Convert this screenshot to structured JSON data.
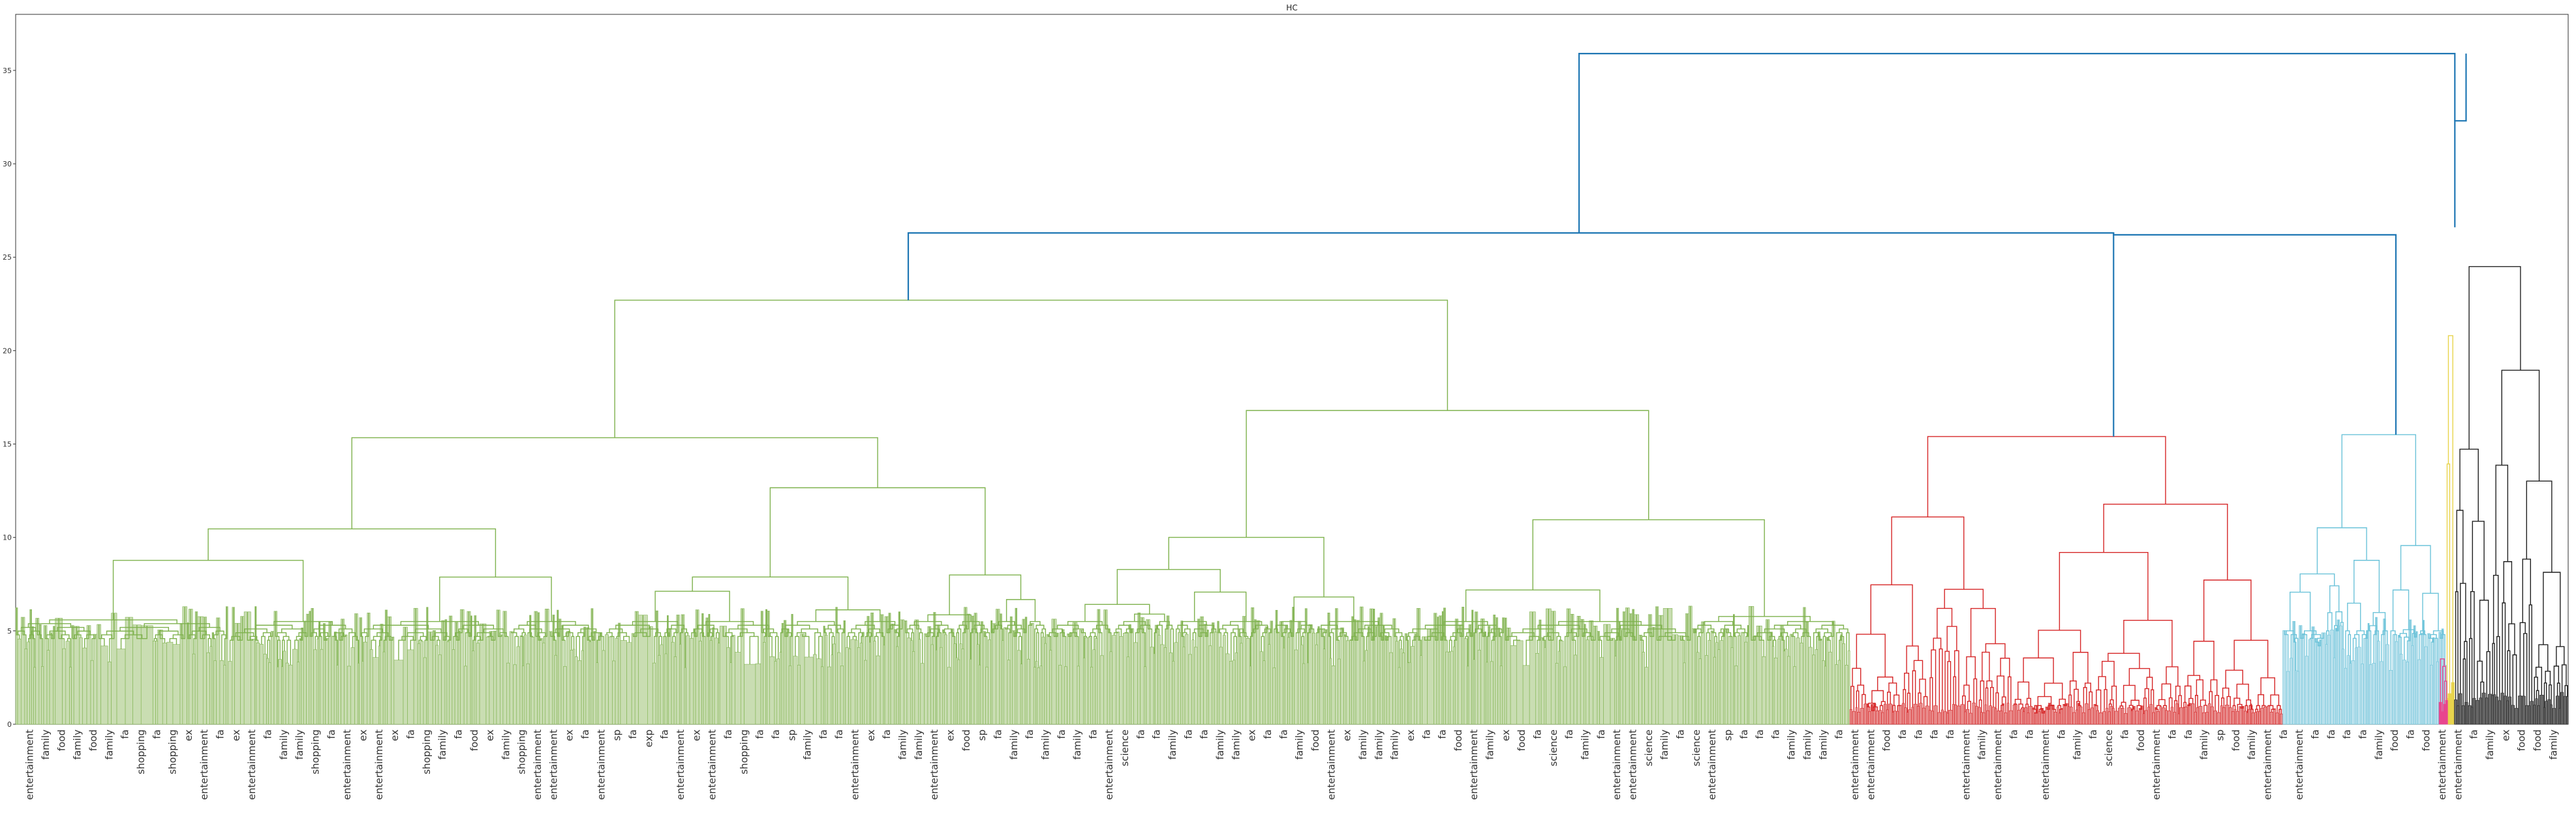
{
  "chart_data": {
    "type": "dendrogram",
    "title": "HC",
    "xlabel": "",
    "ylabel": "",
    "ylim": [
      0,
      38
    ],
    "yticks": [
      0,
      5,
      10,
      15,
      20,
      25,
      30,
      35
    ],
    "grid": false,
    "legend": "none",
    "colors": {
      "green": "#7fb24e",
      "green_fill": "#c9ddb2",
      "red": "#d62728",
      "red_fill": "#e88a8a",
      "cyan": "#6cc3d9",
      "cyan_fill": "#b8e0ec",
      "yellow": "#e8d44d",
      "pink": "#e8468e",
      "black": "#222222",
      "black_fill": "#666666",
      "link": "#1f77b4"
    },
    "clusters": [
      {
        "color": "green",
        "leaf_start": 0,
        "leaf_end": 0.7186,
        "height": 22.7,
        "base_height": 5.5
      },
      {
        "color": "red",
        "leaf_start": 0.7186,
        "leaf_end": 0.8882,
        "height": 15.4,
        "base_height": 1.0
      },
      {
        "color": "cyan",
        "leaf_start": 0.8882,
        "leaf_end": 0.9522,
        "height": 15.5,
        "base_height": 5.0
      },
      {
        "color": "yellow",
        "leaf_start": 0.9522,
        "leaf_end": 0.9554,
        "height": 20.8,
        "base_height": 2.0
      },
      {
        "color": "pink",
        "leaf_start": 0.9494,
        "leaf_end": 0.9528,
        "height": 3.5,
        "base_height": 1.2
      },
      {
        "color": "black",
        "leaf_start": 0.9554,
        "leaf_end": 1.0,
        "height": 24.5,
        "base_height": 1.5
      }
    ],
    "top_links": [
      {
        "left": [
          0.3497,
          22.7
        ],
        "right": [
          0.8219,
          15.4
        ],
        "height": 26.3
      },
      {
        "left": [
          0.8219,
          26.3
        ],
        "right": [
          0.9325,
          15.5
        ],
        "height": 26.2
      },
      {
        "left": [
          0.6125,
          26.3
        ],
        "right": [
          0.9556,
          32.3
        ],
        "height": 35.9
      },
      {
        "left": [
          0.9556,
          26.6
        ],
        "right": [
          0.96,
          35.9
        ],
        "height": 32.3
      }
    ],
    "leaf_labels": [
      "entertainment",
      "family",
      "food",
      "family",
      "food",
      "family",
      "fa",
      "shopping",
      "fa",
      "shopping",
      "ex",
      "entertainment",
      "fa",
      "ex",
      "entertainment",
      "fa",
      "family",
      "family",
      "shopping",
      "fa",
      "entertainment",
      "ex",
      "entertainment",
      "ex",
      "fa",
      "shopping",
      "family",
      "fa",
      "food",
      "ex",
      "family",
      "shopping",
      "entertainment",
      "entertainment",
      "ex",
      "fa",
      "entertainment",
      "sp",
      "fa",
      "exp",
      "fa",
      "entertainment",
      "ex",
      "entertainment",
      "fa",
      "shopping",
      "fa",
      "fa",
      "sp",
      "family",
      "fa",
      "fa",
      "entertainment",
      "ex",
      "fa",
      "family",
      "family",
      "entertainment",
      "ex",
      "food",
      "sp",
      "fa",
      "family",
      "fa",
      "family",
      "fa",
      "family",
      "fa",
      "entertainment",
      "science",
      "fa",
      "fa",
      "family",
      "fa",
      "fa",
      "family",
      "family",
      "ex",
      "fa",
      "fa",
      "family",
      "food",
      "entertainment",
      "ex",
      "family",
      "family",
      "family",
      "ex",
      "fa",
      "fa",
      "food",
      "entertainment",
      "family",
      "ex",
      "food",
      "fa",
      "science",
      "fa",
      "family",
      "fa",
      "entertainment",
      "entertainment",
      "science",
      "family",
      "fa",
      "science",
      "entertainment",
      "sp",
      "fa",
      "fa",
      "fa",
      "family",
      "family",
      "family",
      "fa",
      "entertainment",
      "entertainment",
      "food",
      "fa",
      "fa",
      "fa",
      "fa",
      "entertainment",
      "family",
      "entertainment",
      "fa",
      "fa",
      "entertainment",
      "fa",
      "family",
      "fa",
      "science",
      "fa",
      "food",
      "entertainment",
      "fa",
      "fa",
      "family",
      "sp",
      "food",
      "family",
      "entertainment",
      "fa",
      "entertainment",
      "fa",
      "fa",
      "fa",
      "fa",
      "family",
      "food",
      "fa",
      "food",
      "entertainment",
      "entertainment",
      "fa",
      "family",
      "ex",
      "food",
      "food",
      "family"
    ]
  }
}
